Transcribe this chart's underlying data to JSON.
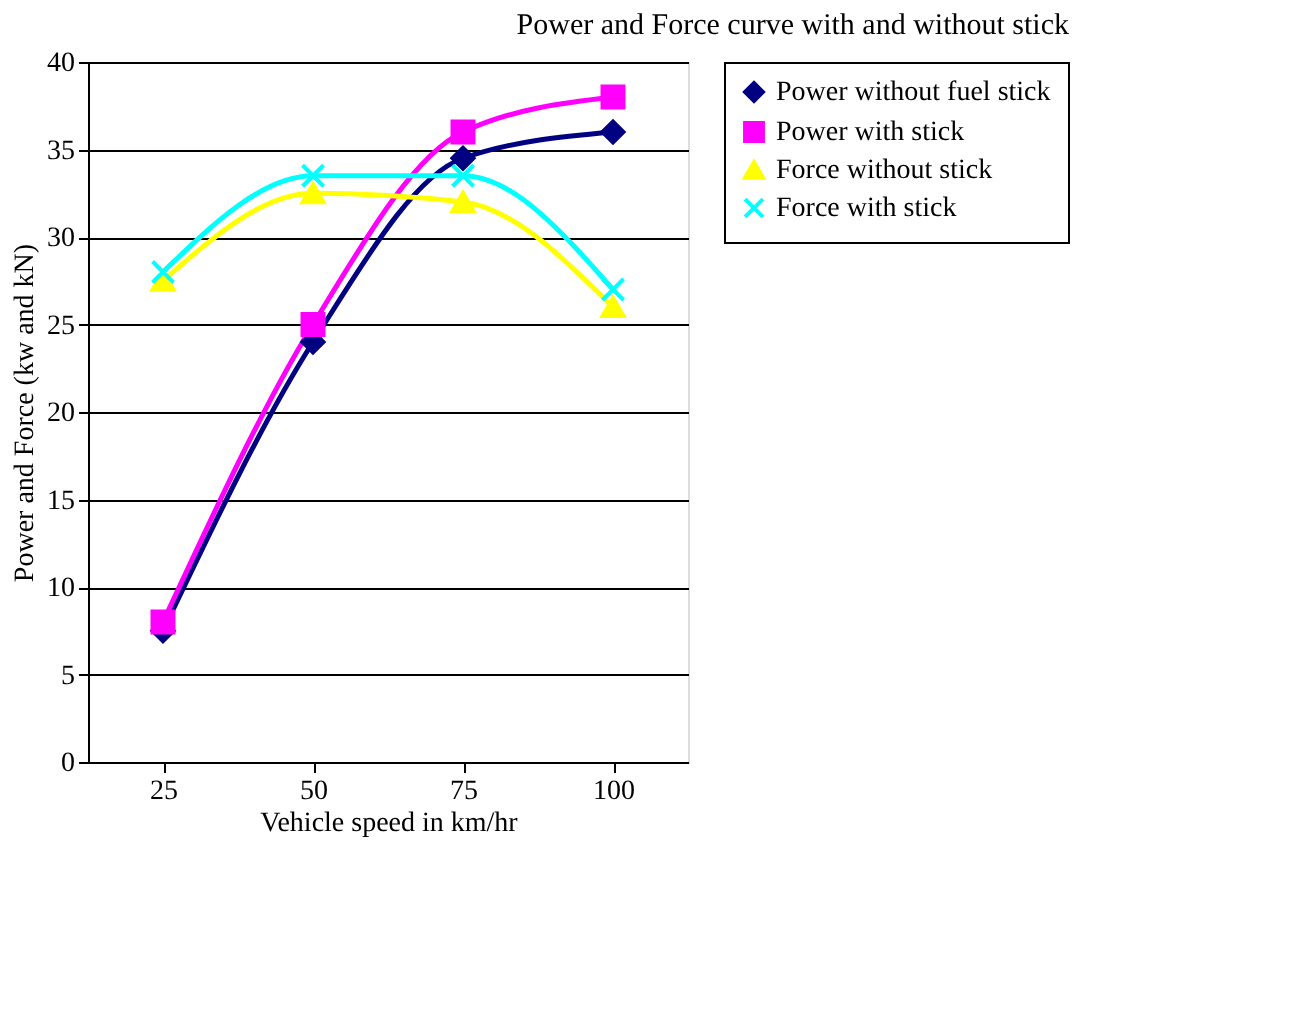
{
  "chart_data": {
    "type": "line",
    "title": "Power and Force curve with and without stick",
    "xlabel": "Vehicle speed in km/hr",
    "ylabel": "Power and Force (kw and kN)",
    "categories": [
      "25",
      "50",
      "75",
      "100"
    ],
    "series": [
      {
        "name": "Power without fuel stick",
        "color": "#000080",
        "marker": "diamond",
        "values": [
          7.5,
          24,
          34.5,
          36
        ]
      },
      {
        "name": "Power with stick",
        "color": "#ff00ff",
        "marker": "square",
        "values": [
          8,
          25,
          36,
          38
        ]
      },
      {
        "name": "Force without stick",
        "color": "#ffff00",
        "marker": "triangle",
        "values": [
          27.5,
          32.5,
          32,
          26
        ]
      },
      {
        "name": "Force with stick",
        "color": "#00ffff",
        "marker": "cross",
        "values": [
          28,
          33.5,
          33.5,
          27
        ]
      }
    ],
    "ylim": [
      0,
      40
    ],
    "yticks": [
      0,
      5,
      10,
      15,
      20,
      25,
      30,
      35,
      40
    ],
    "grid": "y",
    "legend": "right",
    "line_style": "solid"
  }
}
